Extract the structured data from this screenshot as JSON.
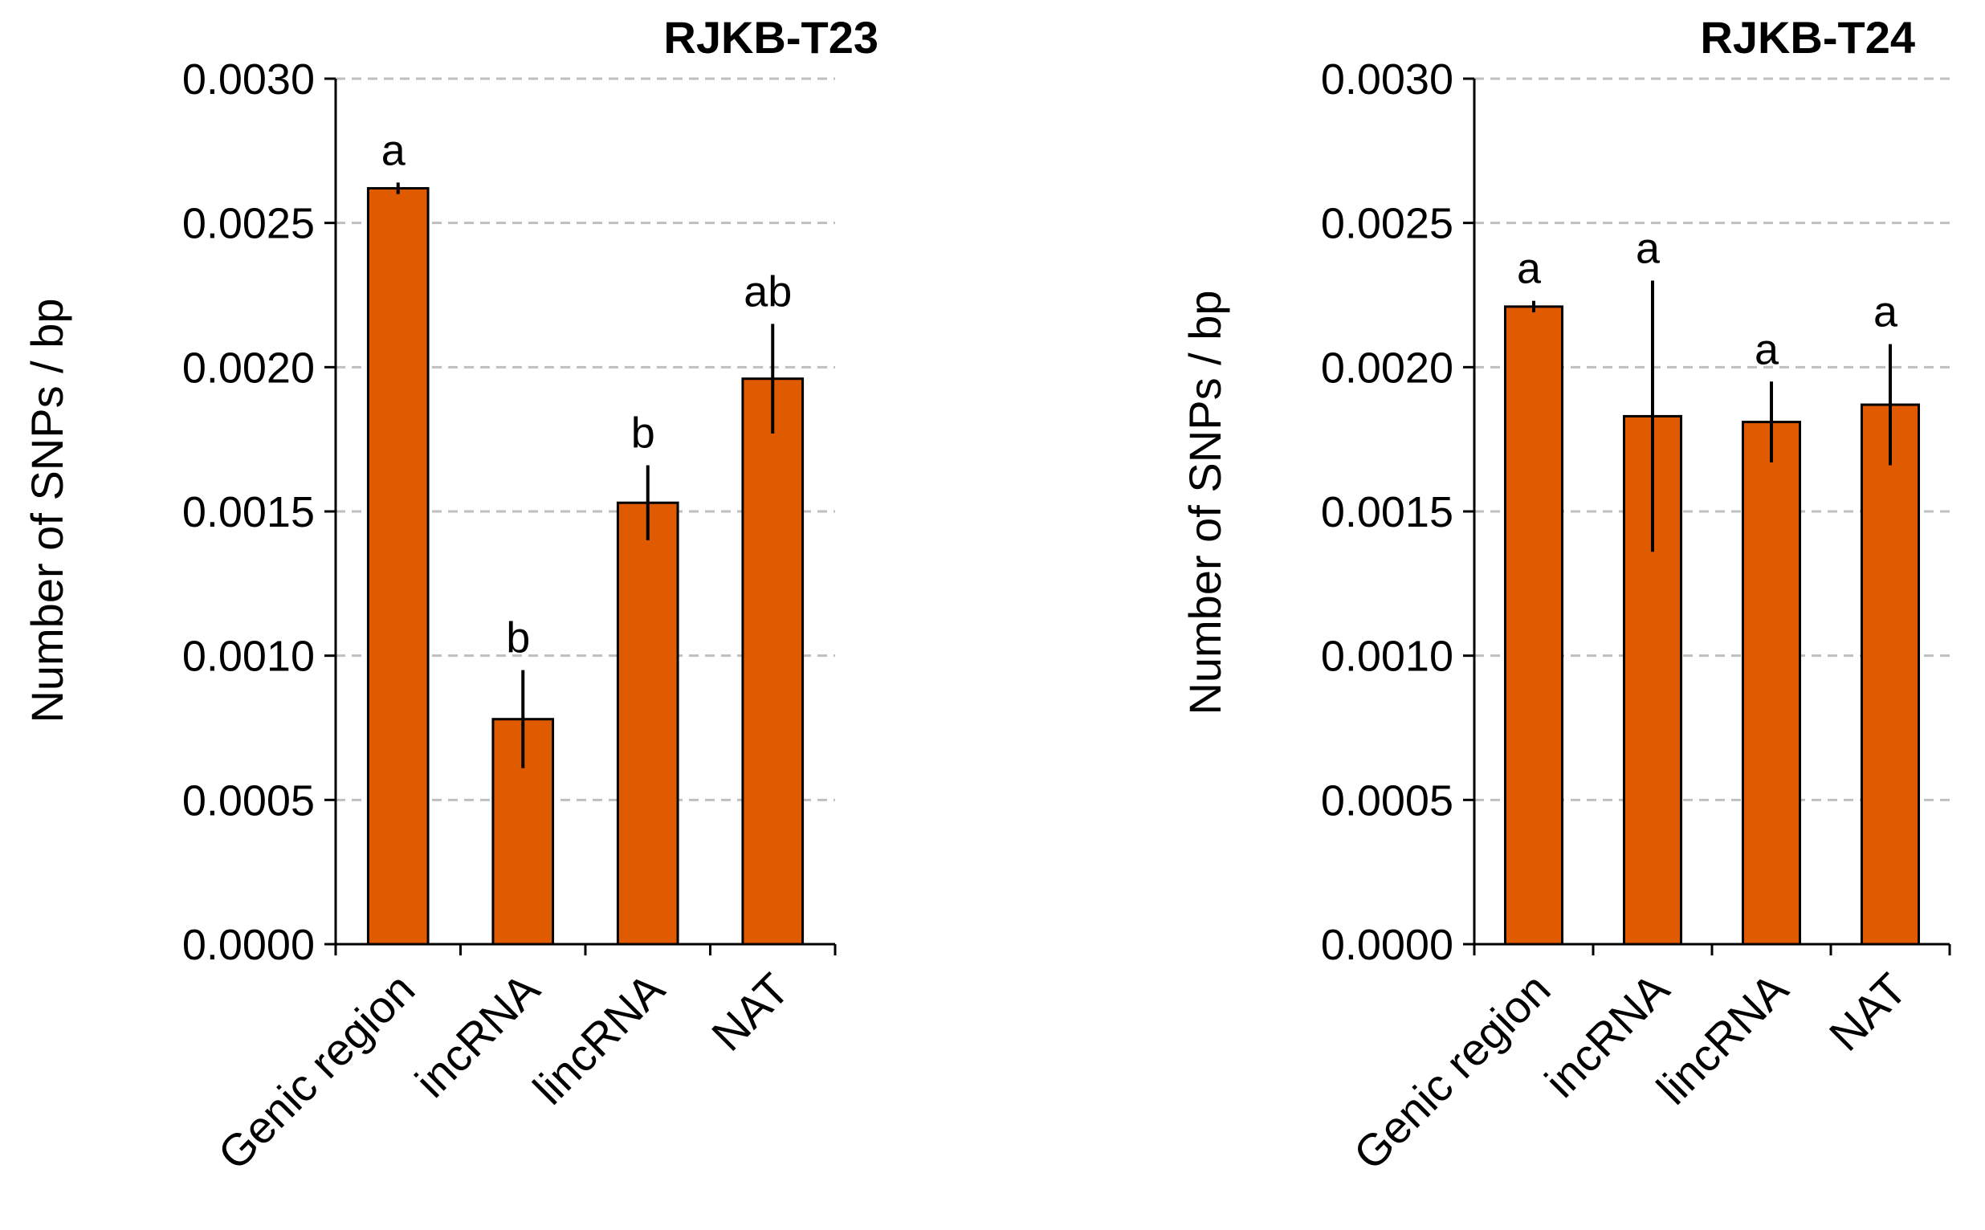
{
  "chart_data": [
    {
      "type": "bar",
      "title": "RJKB-T23",
      "ylabel": "Number of SNPs / bp",
      "xlabel": "",
      "ylim": [
        0,
        0.003
      ],
      "yticks": [
        "0.0000",
        "0.0005",
        "0.0010",
        "0.0015",
        "0.0020",
        "0.0025",
        "0.0030"
      ],
      "grid": true,
      "bar_color": "#E05A00",
      "categories": [
        "Genic region",
        "incRNA",
        "lincRNA",
        "NAT"
      ],
      "values": [
        0.00262,
        0.00078,
        0.00153,
        0.00196
      ],
      "errors": [
        2e-05,
        0.00017,
        0.00013,
        0.00019
      ],
      "significance": [
        "a",
        "b",
        "b",
        "ab"
      ]
    },
    {
      "type": "bar",
      "title": "RJKB-T24",
      "ylabel": "Number of SNPs / bp",
      "xlabel": "",
      "ylim": [
        0,
        0.003
      ],
      "yticks": [
        "0.0000",
        "0.0005",
        "0.0010",
        "0.0015",
        "0.0020",
        "0.0025",
        "0.0030"
      ],
      "grid": true,
      "bar_color": "#E05A00",
      "categories": [
        "Genic region",
        "incRNA",
        "lincRNA",
        "NAT"
      ],
      "values": [
        0.00221,
        0.00183,
        0.00181,
        0.00187
      ],
      "errors": [
        2e-05,
        0.00047,
        0.00014,
        0.00021
      ],
      "significance": [
        "a",
        "a",
        "a",
        "a"
      ]
    }
  ]
}
